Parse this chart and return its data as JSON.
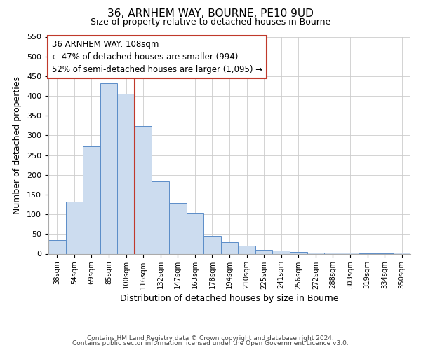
{
  "title": "36, ARNHEM WAY, BOURNE, PE10 9UD",
  "subtitle": "Size of property relative to detached houses in Bourne",
  "xlabel": "Distribution of detached houses by size in Bourne",
  "ylabel": "Number of detached properties",
  "categories": [
    "38sqm",
    "54sqm",
    "69sqm",
    "85sqm",
    "100sqm",
    "116sqm",
    "132sqm",
    "147sqm",
    "163sqm",
    "178sqm",
    "194sqm",
    "210sqm",
    "225sqm",
    "241sqm",
    "256sqm",
    "272sqm",
    "288sqm",
    "303sqm",
    "319sqm",
    "334sqm",
    "350sqm"
  ],
  "values": [
    35,
    133,
    272,
    432,
    406,
    323,
    184,
    128,
    103,
    45,
    30,
    20,
    10,
    8,
    5,
    3,
    2,
    2,
    1,
    1,
    2
  ],
  "bar_color": "#ccdcef",
  "bar_edge_color": "#5b8dc8",
  "vline_x_index": 4,
  "vline_color": "#c0392b",
  "annotation_title": "36 ARNHEM WAY: 108sqm",
  "annotation_line1": "← 47% of detached houses are smaller (994)",
  "annotation_line2": "52% of semi-detached houses are larger (1,095) →",
  "annotation_box_color": "#ffffff",
  "annotation_box_edge_color": "#c0392b",
  "ylim": [
    0,
    550
  ],
  "footer1": "Contains HM Land Registry data © Crown copyright and database right 2024.",
  "footer2": "Contains public sector information licensed under the Open Government Licence v3.0."
}
